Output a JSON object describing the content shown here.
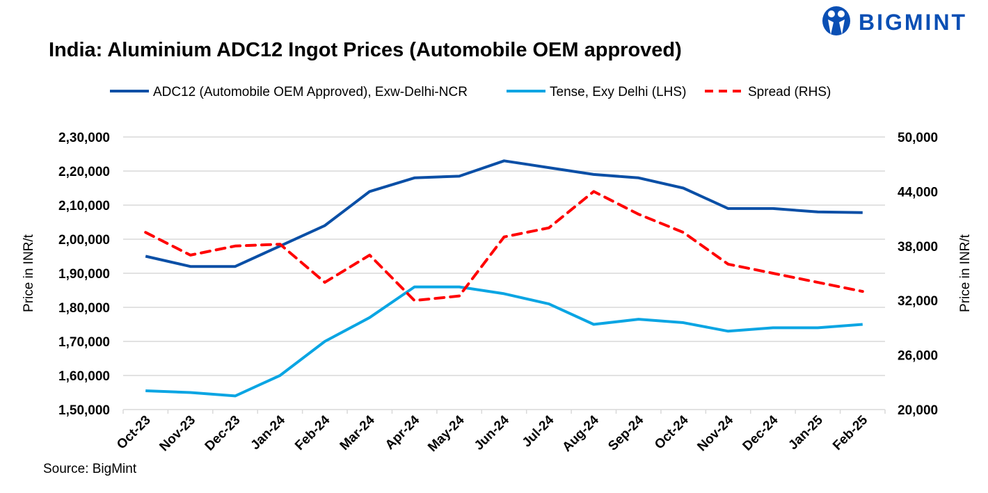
{
  "brand": {
    "name": "BIGMINT",
    "color": "#0a4fb4"
  },
  "source": "Source: BigMint",
  "chart_data": {
    "type": "line",
    "title": "India: Aluminium ADC12 Ingot Prices (Automobile OEM approved)",
    "categories": [
      "Oct-23",
      "Nov-23",
      "Dec-23",
      "Jan-24",
      "Feb-24",
      "Mar-24",
      "Apr-24",
      "May-24",
      "Jun-24",
      "Jul-24",
      "Aug-24",
      "Sep-24",
      "Oct-24",
      "Nov-24",
      "Dec-24",
      "Jan-25",
      "Feb-25"
    ],
    "ylabel": "Price in INR/t",
    "y2label": "Price in INR/t",
    "ylim": [
      150000,
      230000
    ],
    "yticks": [
      "1,50,000",
      "1,60,000",
      "1,70,000",
      "1,80,000",
      "1,90,000",
      "2,00,000",
      "2,10,000",
      "2,20,000",
      "2,30,000"
    ],
    "y2lim": [
      20000,
      50000
    ],
    "y2ticks": [
      "20,000",
      "26,000",
      "32,000",
      "38,000",
      "44,000",
      "50,000"
    ],
    "grid": true,
    "legend": "top",
    "series": [
      {
        "name": "ADC12 (Automobile OEM Approved), Exw-Delhi-NCR",
        "axis": "left",
        "color": "#0a4fa6",
        "dash": false,
        "values": [
          195000,
          192000,
          192000,
          198000,
          204000,
          214000,
          218000,
          218500,
          223000,
          221000,
          219000,
          218000,
          215000,
          209000,
          209000,
          208000,
          207800
        ]
      },
      {
        "name": "Tense, Exy Delhi (LHS)",
        "axis": "left",
        "color": "#0aa5e3",
        "dash": false,
        "values": [
          155500,
          155000,
          154000,
          160000,
          170000,
          177000,
          186000,
          186000,
          184000,
          181000,
          175000,
          176500,
          175500,
          173000,
          174000,
          174000,
          175000
        ]
      },
      {
        "name": "Spread (RHS)",
        "axis": "right",
        "color": "#ff0000",
        "dash": true,
        "values": [
          39500,
          37000,
          38000,
          38200,
          34000,
          37000,
          32000,
          32500,
          39000,
          40000,
          44000,
          41500,
          39500,
          36000,
          35000,
          34000,
          33000
        ]
      }
    ]
  }
}
